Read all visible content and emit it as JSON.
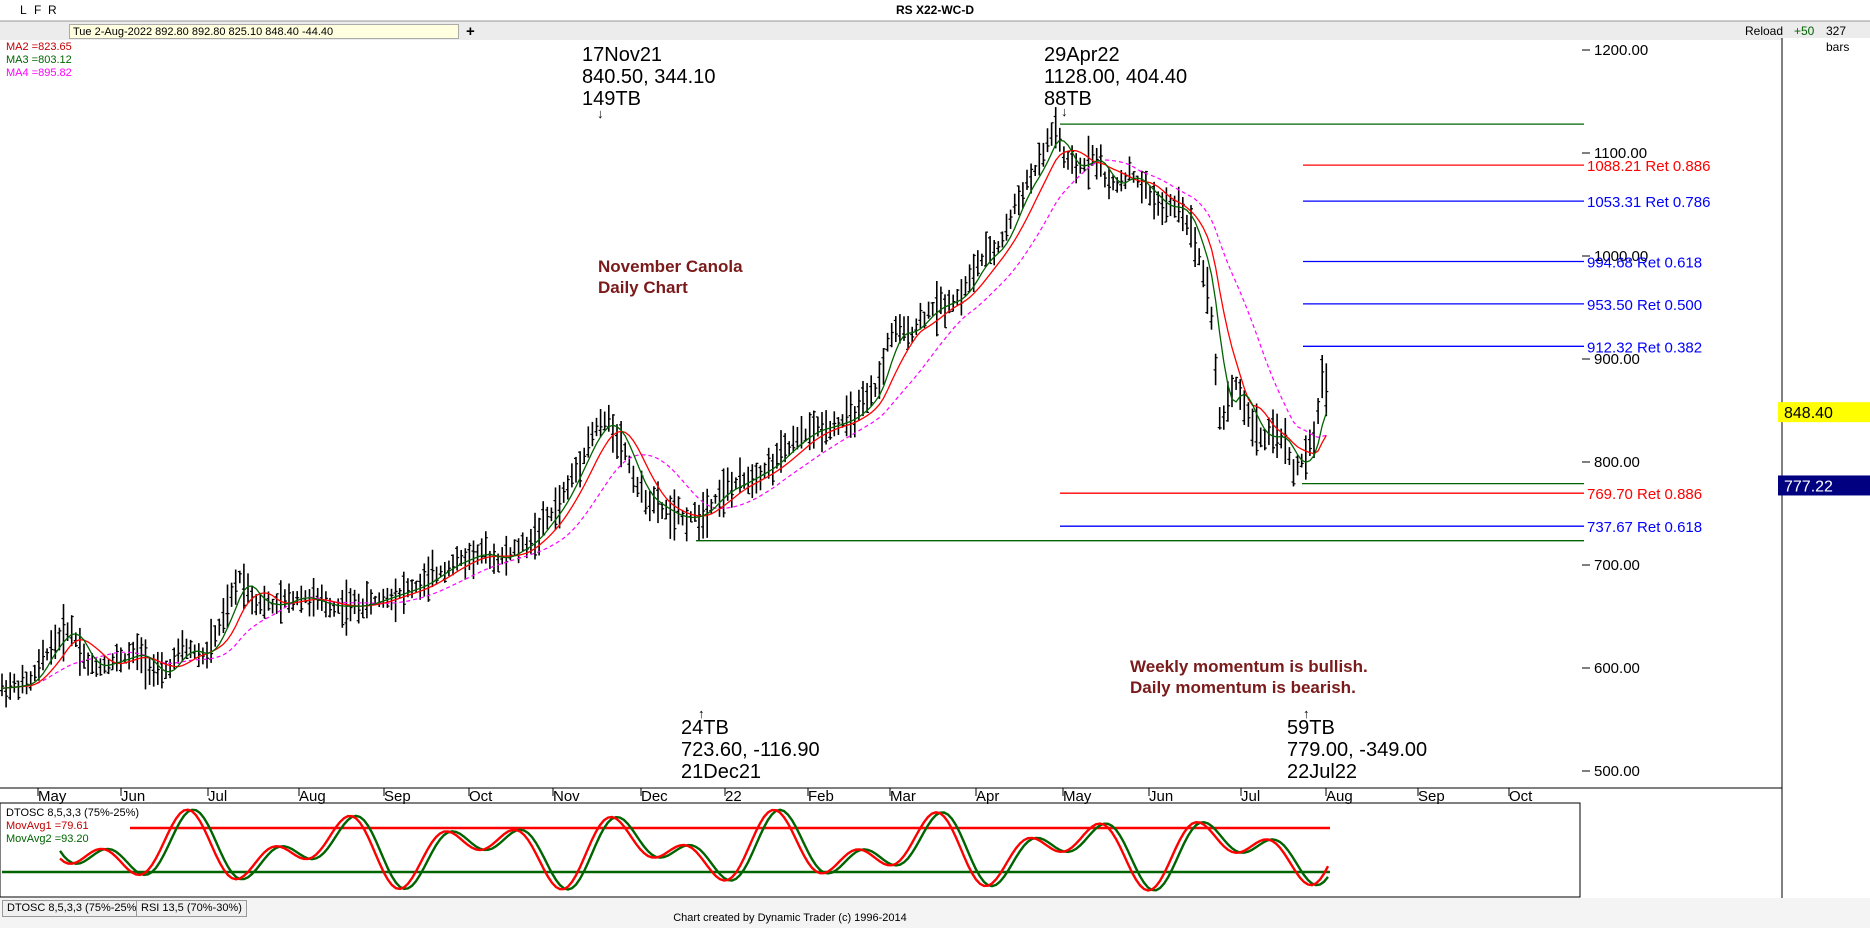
{
  "header": {
    "title": "RS X22-WC-D",
    "buttons": [
      "L",
      "F",
      "R"
    ],
    "info": "Tue 2-Aug-2022   892.80   892.80   825.10   848.40   -44.40",
    "plus": "+",
    "reload": "Reload",
    "plus50": "+50",
    "bars": "327 bars"
  },
  "indicators": {
    "ma2": "MA2 =823.65",
    "ma3": "MA3 =803.12",
    "ma4": "MA4 =895.82",
    "dtosc": "DTOSC 8,5,3,3 (75%-25%)",
    "movavg1": "MovAvg1 =79.61",
    "movavg2": "MovAvg2 =93.20"
  },
  "annotations": {
    "nov21": [
      "17Nov21",
      "840.50, 344.10",
      "149TB"
    ],
    "apr22": [
      "29Apr22",
      "1128.00, 404.40",
      "88TB"
    ],
    "dec21": [
      "24TB",
      "723.60, -116.90",
      "21Dec21"
    ],
    "jul22": [
      "59TB",
      "779.00, -349.00",
      "22Jul22"
    ],
    "chart_label": [
      "November Canola",
      "Daily Chart"
    ],
    "momentum": [
      "Weekly momentum is bullish.",
      "Daily momentum is bearish."
    ]
  },
  "tabs": [
    "DTOSC 8,5,3,3 (75%-25%)",
    "RSI 13,5 (70%-30%)"
  ],
  "footer": "Chart created by Dynamic Trader  (c) 1996-2014",
  "colors": {
    "red": "#ff0000",
    "blue": "#0000ff",
    "green": "#006400",
    "magenta": "#ff00ff",
    "price_tag": "#ffff00",
    "low_tag": "#000080"
  },
  "chart_data": {
    "type": "line",
    "title": "RS X22-WC-D",
    "x_ticks": [
      "May",
      "Jun",
      "Jul",
      "Aug",
      "Sep",
      "Oct",
      "Nov",
      "Dec",
      "22",
      "Feb",
      "Mar",
      "Apr",
      "May",
      "Jun",
      "Jul",
      "Aug",
      "Sep",
      "Oct"
    ],
    "y_ticks": [
      "1200.00",
      "1100.00",
      "1000.00",
      "900.00",
      "800.00",
      "700.00",
      "600.00",
      "500.00"
    ],
    "ylim": [
      490,
      1205
    ],
    "current_price": "848.40",
    "current_low": "777.22",
    "pivots": [
      {
        "label": "17Nov21",
        "value": 840.5
      },
      {
        "label": "21Dec21",
        "value": 723.6
      },
      {
        "label": "29Apr22",
        "value": 1128.0
      },
      {
        "label": "22Jul22",
        "value": 779.0
      }
    ],
    "levels": [
      {
        "value": 1088.21,
        "label": "1088.21 Ret 0.886",
        "color": "red"
      },
      {
        "value": 1053.31,
        "label": "1053.31 Ret 0.786",
        "color": "blue"
      },
      {
        "value": 994.68,
        "label": "994.68 Ret 0.618",
        "color": "blue"
      },
      {
        "value": 953.5,
        "label": "953.50 Ret 0.500",
        "color": "blue"
      },
      {
        "value": 912.32,
        "label": "912.32 Ret 0.382",
        "color": "blue"
      },
      {
        "value": 769.7,
        "label": "769.70 Ret 0.886",
        "color": "red"
      },
      {
        "value": 737.67,
        "label": "737.67 Ret 0.618",
        "color": "blue"
      }
    ],
    "close_series": [
      {
        "date": "Apr21",
        "value": 580
      },
      {
        "date": "May21",
        "value": 610
      },
      {
        "date": "Jun21",
        "value": 600
      },
      {
        "date": "late Jun21",
        "value": 660
      },
      {
        "date": "Jul21",
        "value": 680
      },
      {
        "date": "Aug21",
        "value": 660
      },
      {
        "date": "Sep21",
        "value": 675
      },
      {
        "date": "Oct21",
        "value": 715
      },
      {
        "date": "Nov21",
        "value": 840
      },
      {
        "date": "Dec21",
        "value": 745
      },
      {
        "date": "Jan22",
        "value": 790
      },
      {
        "date": "Feb22",
        "value": 840
      },
      {
        "date": "Mar22",
        "value": 890
      },
      {
        "date": "Apr22",
        "value": 1128
      },
      {
        "date": "May22",
        "value": 1080
      },
      {
        "date": "Jun22",
        "value": 1020
      },
      {
        "date": "early Jul22",
        "value": 820
      },
      {
        "date": "22Jul22",
        "value": 779
      },
      {
        "date": "2Aug22",
        "value": 848.4
      }
    ]
  }
}
